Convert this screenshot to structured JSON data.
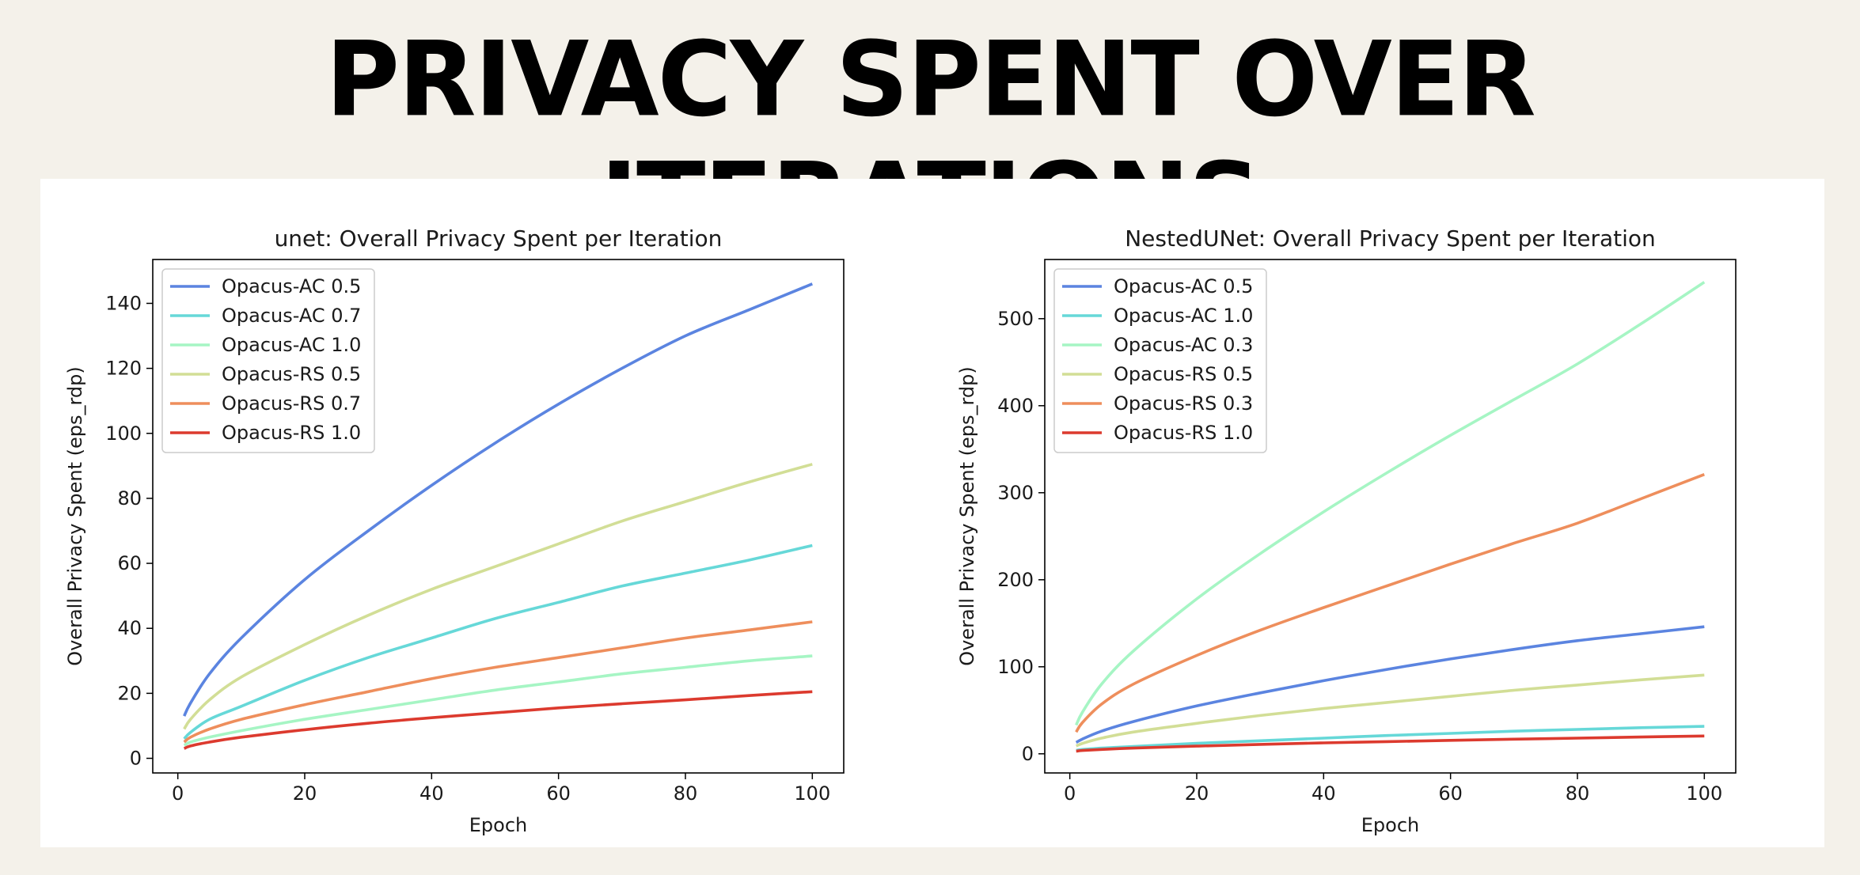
{
  "page": {
    "title": "PRIVACY SPENT OVER ITERATIONS"
  },
  "chart_data": [
    {
      "type": "line",
      "title": "unet: Overall Privacy Spent per Iteration",
      "xlabel": "Epoch",
      "ylabel": "Overall Privacy Spent (eps_rdp)",
      "xlim": [
        -3.95,
        104.95
      ],
      "ylim": [
        -4.5,
        153.5
      ],
      "xticks": [
        0,
        20,
        40,
        60,
        80,
        100
      ],
      "yticks": [
        0,
        20,
        40,
        60,
        80,
        100,
        120,
        140
      ],
      "legend_position": "upper left",
      "grid": false,
      "x_range": [
        1,
        100
      ],
      "series": [
        {
          "name": "Opacus-AC 0.5",
          "color": "#5b84e0",
          "x": [
            1,
            2,
            5,
            10,
            20,
            30,
            40,
            50,
            60,
            70,
            80,
            90,
            100
          ],
          "y": [
            13,
            17,
            26,
            37,
            55,
            70,
            84,
            97,
            109,
            120,
            130,
            138,
            146
          ]
        },
        {
          "name": "Opacus-AC 0.7",
          "color": "#66d8d8",
          "x": [
            1,
            2,
            5,
            10,
            20,
            30,
            40,
            50,
            60,
            70,
            80,
            90,
            100
          ],
          "y": [
            6,
            8,
            12,
            16,
            24,
            31,
            37,
            43,
            48,
            53,
            57,
            61,
            65.5
          ]
        },
        {
          "name": "Opacus-AC 1.0",
          "color": "#a6f5c4",
          "x": [
            1,
            2,
            5,
            10,
            20,
            30,
            40,
            50,
            60,
            70,
            80,
            90,
            100
          ],
          "y": [
            4,
            5,
            6.5,
            8.5,
            12,
            15,
            18,
            21,
            23.5,
            26,
            28,
            30,
            31.5
          ]
        },
        {
          "name": "Opacus-RS 0.5",
          "color": "#d2de96",
          "x": [
            1,
            2,
            5,
            10,
            20,
            30,
            40,
            50,
            60,
            70,
            80,
            90,
            100
          ],
          "y": [
            9,
            12,
            18,
            25,
            35,
            44,
            52,
            59,
            66,
            73,
            79,
            85,
            90.5
          ]
        },
        {
          "name": "Opacus-RS 0.7",
          "color": "#ee8e5c",
          "x": [
            1,
            2,
            5,
            10,
            20,
            30,
            40,
            50,
            60,
            70,
            80,
            90,
            100
          ],
          "y": [
            5,
            6.5,
            9,
            12,
            16.5,
            20.5,
            24.5,
            28,
            31,
            34,
            37,
            39.5,
            42
          ]
        },
        {
          "name": "Opacus-RS 1.0",
          "color": "#dc3a2e",
          "x": [
            1,
            2,
            5,
            10,
            20,
            30,
            40,
            50,
            60,
            70,
            80,
            90,
            100
          ],
          "y": [
            3,
            3.8,
            5,
            6.5,
            8.8,
            10.8,
            12.5,
            14,
            15.5,
            16.8,
            18,
            19.3,
            20.5
          ]
        }
      ]
    },
    {
      "type": "line",
      "title": "NestedUNet: Overall Privacy Spent per Iteration",
      "xlabel": "Epoch",
      "ylabel": "Overall Privacy Spent (eps_rdp)",
      "xlim": [
        -3.95,
        104.95
      ],
      "ylim": [
        -22,
        568
      ],
      "xticks": [
        0,
        20,
        40,
        60,
        80,
        100
      ],
      "yticks": [
        0,
        100,
        200,
        300,
        400,
        500
      ],
      "legend_position": "upper left",
      "grid": false,
      "x_range": [
        1,
        100
      ],
      "series": [
        {
          "name": "Opacus-AC 0.5",
          "color": "#5b84e0",
          "x": [
            1,
            2,
            5,
            10,
            20,
            30,
            40,
            50,
            60,
            70,
            80,
            90,
            100
          ],
          "y": [
            13,
            17,
            26,
            37,
            55,
            70,
            84,
            97,
            109,
            120,
            130,
            138,
            146
          ]
        },
        {
          "name": "Opacus-AC 1.0",
          "color": "#66d8d8",
          "x": [
            1,
            2,
            5,
            10,
            20,
            30,
            40,
            50,
            60,
            70,
            80,
            90,
            100
          ],
          "y": [
            4,
            5,
            6.5,
            8.5,
            12,
            15,
            18,
            21,
            23.5,
            26,
            28,
            30,
            31.5
          ]
        },
        {
          "name": "Opacus-AC 0.3",
          "color": "#a6f5c4",
          "x": [
            1,
            2,
            5,
            10,
            20,
            30,
            40,
            50,
            60,
            70,
            80,
            90,
            100
          ],
          "y": [
            33,
            48,
            80,
            118,
            178,
            230,
            278,
            323,
            366,
            407,
            448,
            494,
            542
          ]
        },
        {
          "name": "Opacus-RS 0.5",
          "color": "#d2de96",
          "x": [
            1,
            2,
            5,
            10,
            20,
            30,
            40,
            50,
            60,
            70,
            80,
            90,
            100
          ],
          "y": [
            9,
            12,
            18,
            25,
            35,
            44,
            52,
            59,
            66,
            73,
            79,
            85,
            90.5
          ]
        },
        {
          "name": "Opacus-RS 0.3",
          "color": "#ee8e5c",
          "x": [
            1,
            2,
            5,
            10,
            20,
            30,
            40,
            50,
            60,
            70,
            80,
            90,
            100
          ],
          "y": [
            25,
            36,
            57,
            80,
            113,
            142,
            168,
            193,
            218,
            242,
            265,
            293,
            321
          ]
        },
        {
          "name": "Opacus-RS 1.0",
          "color": "#dc3a2e",
          "x": [
            1,
            2,
            5,
            10,
            20,
            30,
            40,
            50,
            60,
            70,
            80,
            90,
            100
          ],
          "y": [
            3,
            3.8,
            5,
            6.5,
            8.8,
            10.8,
            12.5,
            14,
            15.5,
            16.8,
            18,
            19.3,
            20.5
          ]
        }
      ]
    }
  ]
}
